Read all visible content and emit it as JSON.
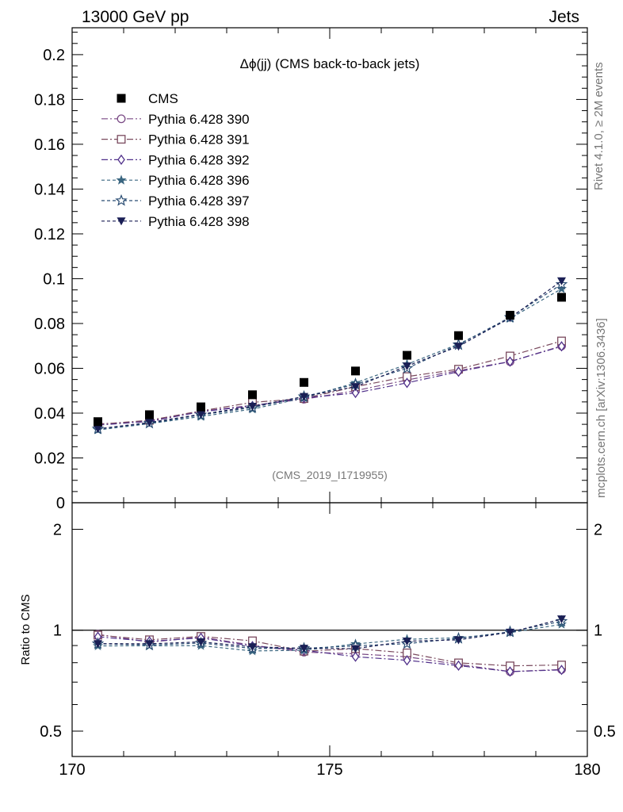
{
  "header": {
    "left": "13000 GeV pp",
    "right": "Jets"
  },
  "side_labels": {
    "rivet": "Rivet 4.1.0, ≥ 2M events",
    "mcplots": "mcplots.cern.ch [arXiv:1306.3436]"
  },
  "chart_data": {
    "type": "scatter",
    "title": "Δϕ(jj) (CMS back-to-back jets)",
    "watermark": "(CMS_2019_I1719955)",
    "xlabel": "",
    "ylabel": "",
    "xlim": [
      170,
      180
    ],
    "ylim": [
      0,
      0.212
    ],
    "x_ticks": [
      "170",
      "175",
      "180"
    ],
    "y_ticks": [
      "0",
      "0.02",
      "0.04",
      "0.06",
      "0.08",
      "0.1",
      "0.12",
      "0.14",
      "0.16",
      "0.18",
      "0.2"
    ],
    "x": [
      170.5,
      171.5,
      172.5,
      173.5,
      174.5,
      175.5,
      176.5,
      177.5,
      178.5,
      179.5
    ],
    "data": {
      "name": "CMS",
      "color": "#000000",
      "values": [
        0.0362,
        0.0393,
        0.0428,
        0.0482,
        0.0537,
        0.0588,
        0.0658,
        0.0746,
        0.0837,
        0.0917
      ]
    },
    "series": [
      {
        "name": "Pythia 6.428 390",
        "color": "#7a4a85",
        "marker": "circle-open",
        "dash": "8,3,2,3",
        "values": [
          0.0352,
          0.0362,
          0.0408,
          0.0435,
          0.0462,
          0.05,
          0.0548,
          0.059,
          0.063,
          0.07
        ]
      },
      {
        "name": "Pythia 6.428 391",
        "color": "#7a4a5e",
        "marker": "square-open",
        "dash": "8,3,2,3",
        "values": [
          0.035,
          0.0368,
          0.041,
          0.0448,
          0.0465,
          0.0518,
          0.0563,
          0.0596,
          0.0655,
          0.0722
        ]
      },
      {
        "name": "Pythia 6.428 392",
        "color": "#50308a",
        "marker": "diamond-open",
        "dash": "8,3,2,3",
        "values": [
          0.0346,
          0.0364,
          0.0406,
          0.0432,
          0.0468,
          0.049,
          0.0535,
          0.0585,
          0.063,
          0.0698
        ]
      },
      {
        "name": "Pythia 6.428 396",
        "color": "#3a6680",
        "marker": "star-filled",
        "dash": "4,3",
        "values": [
          0.0325,
          0.0353,
          0.0385,
          0.0418,
          0.0468,
          0.0535,
          0.0618,
          0.0708,
          0.0823,
          0.0955
        ]
      },
      {
        "name": "Pythia 6.428 397",
        "color": "#2a4d73",
        "marker": "star-open",
        "dash": "4,3",
        "values": [
          0.033,
          0.0355,
          0.0392,
          0.0425,
          0.0474,
          0.0528,
          0.06,
          0.0705,
          0.0828,
          0.0975
        ]
      },
      {
        "name": "Pythia 6.428 398",
        "color": "#1a1f55",
        "marker": "triangle-down-filled",
        "dash": "4,3",
        "values": [
          0.033,
          0.0358,
          0.0395,
          0.043,
          0.0474,
          0.0518,
          0.061,
          0.0698,
          0.0825,
          0.099
        ]
      }
    ],
    "ratio_panel": {
      "ylabel": "Ratio to CMS",
      "scale": "log",
      "ylim": [
        0.42,
        2.4
      ],
      "y_ticks": [
        "0.5",
        "1",
        "2"
      ]
    }
  }
}
